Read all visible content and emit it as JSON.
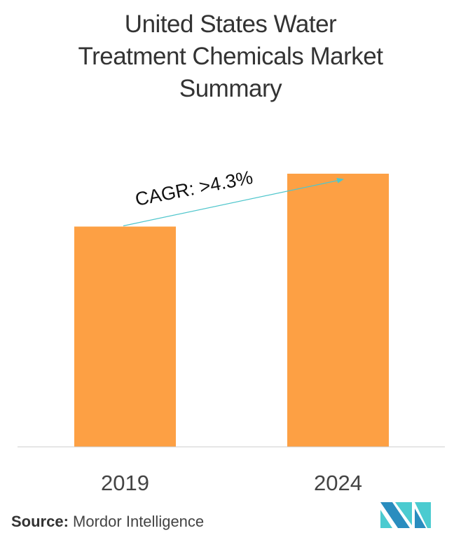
{
  "title_lines": [
    "United States Water",
    "Treatment Chemicals Market",
    "Summary"
  ],
  "chart_data": {
    "type": "bar",
    "title": "United States Water Treatment Chemicals Market Summary",
    "categories": [
      "2019",
      "2024"
    ],
    "values": [
      1.0,
      1.24
    ],
    "xlabel": "",
    "ylabel": "",
    "grid": false,
    "bar_color": "#FDA044",
    "annotation": "CAGR: >4.3%",
    "annotation_arrow_color": "#4FC6CC"
  },
  "source": {
    "label": "Source:",
    "value": "Mordor Intelligence"
  },
  "logo": {
    "text": "Mordor Intelligence",
    "colors": [
      "#2A8DBF",
      "#4BCBD0"
    ]
  }
}
